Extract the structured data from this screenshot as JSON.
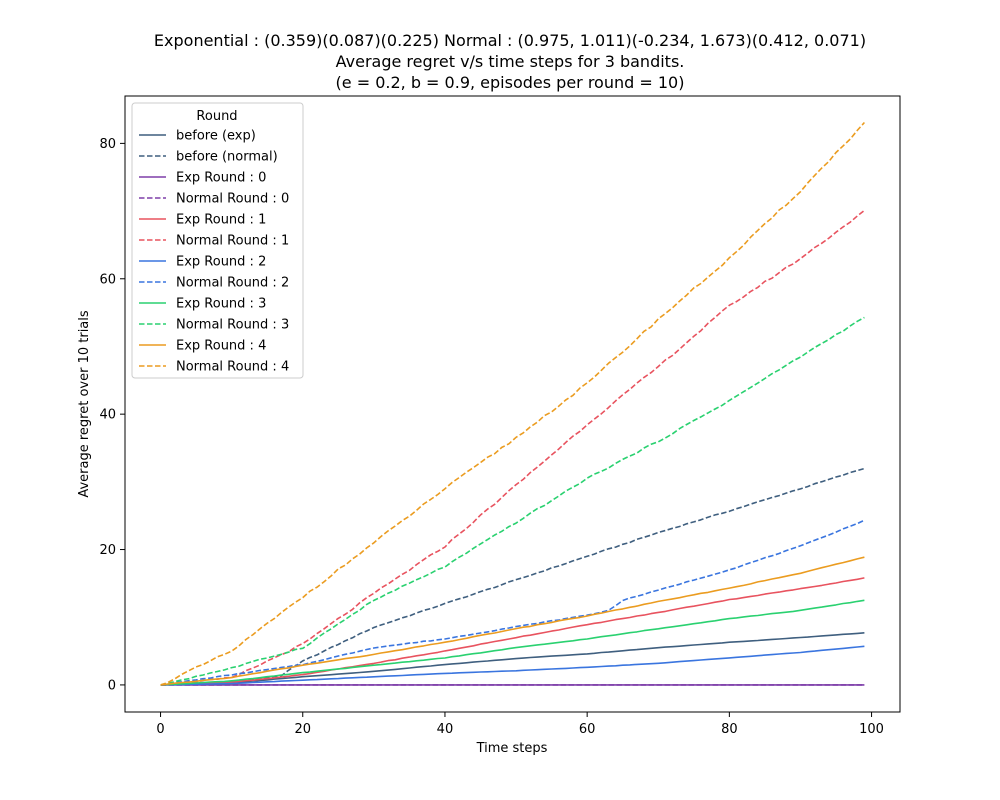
{
  "chart_data": {
    "type": "line",
    "title_lines": [
      "Exponential : (0.359)(0.087)(0.225)   Normal : (0.975, 1.011)(-0.234, 1.673)(0.412, 0.071)",
      "Average regret v/s time steps for 3 bandits.",
      "(e = 0.2, b = 0.9, episodes per round = 10)"
    ],
    "xlabel": "Time steps",
    "ylabel": "Average regret over 10 trials",
    "xlim": [
      -5,
      104
    ],
    "ylim": [
      -4,
      87
    ],
    "xticks": [
      0,
      20,
      40,
      60,
      80,
      100
    ],
    "yticks": [
      0,
      20,
      40,
      60,
      80
    ],
    "grid": false,
    "legend": {
      "title": "Round",
      "placement": "upper-left"
    },
    "x_range": [
      0,
      99
    ],
    "series": [
      {
        "name": "before (exp)",
        "style": "solid",
        "color": "#3f5f7f",
        "points": [
          [
            0,
            0
          ],
          [
            10,
            0.3
          ],
          [
            20,
            1.2
          ],
          [
            30,
            2.0
          ],
          [
            40,
            3.0
          ],
          [
            50,
            3.9
          ],
          [
            60,
            4.6
          ],
          [
            70,
            5.5
          ],
          [
            80,
            6.3
          ],
          [
            90,
            7.0
          ],
          [
            99,
            7.7
          ]
        ]
      },
      {
        "name": "before (normal)",
        "style": "dashed",
        "color": "#3f5f7f",
        "points": [
          [
            0,
            0
          ],
          [
            10,
            0.4
          ],
          [
            17,
            1.4
          ],
          [
            20,
            3.5
          ],
          [
            25,
            6.0
          ],
          [
            30,
            8.5
          ],
          [
            40,
            12.0
          ],
          [
            50,
            15.5
          ],
          [
            60,
            19.0
          ],
          [
            70,
            22.5
          ],
          [
            80,
            25.7
          ],
          [
            90,
            29.0
          ],
          [
            99,
            32.0
          ]
        ]
      },
      {
        "name": "Exp Round : 0",
        "style": "solid",
        "color": "#7e3fa9",
        "points": [
          [
            0,
            0
          ],
          [
            99,
            0
          ]
        ]
      },
      {
        "name": "Normal Round : 0",
        "style": "dashed",
        "color": "#7e3fa9",
        "points": [
          [
            0,
            0
          ],
          [
            99,
            0
          ]
        ]
      },
      {
        "name": "Exp Round : 1",
        "style": "solid",
        "color": "#e8535f",
        "points": [
          [
            0,
            0
          ],
          [
            10,
            0.4
          ],
          [
            20,
            1.5
          ],
          [
            30,
            3.2
          ],
          [
            40,
            5.0
          ],
          [
            50,
            7.0
          ],
          [
            60,
            8.9
          ],
          [
            70,
            10.7
          ],
          [
            80,
            12.6
          ],
          [
            90,
            14.2
          ],
          [
            99,
            15.8
          ]
        ]
      },
      {
        "name": "Normal Round : 1",
        "style": "dashed",
        "color": "#e8535f",
        "points": [
          [
            0,
            0
          ],
          [
            10,
            1.0
          ],
          [
            20,
            6.0
          ],
          [
            30,
            13.5
          ],
          [
            40,
            20.5
          ],
          [
            50,
            29.5
          ],
          [
            60,
            38.5
          ],
          [
            70,
            47.0
          ],
          [
            80,
            56.0
          ],
          [
            90,
            63.0
          ],
          [
            99,
            70.0
          ]
        ]
      },
      {
        "name": "Exp Round : 2",
        "style": "solid",
        "color": "#3a75df",
        "points": [
          [
            0,
            0
          ],
          [
            10,
            0.2
          ],
          [
            20,
            0.7
          ],
          [
            30,
            1.2
          ],
          [
            40,
            1.7
          ],
          [
            50,
            2.1
          ],
          [
            60,
            2.6
          ],
          [
            70,
            3.2
          ],
          [
            80,
            4.0
          ],
          [
            90,
            4.8
          ],
          [
            99,
            5.7
          ]
        ]
      },
      {
        "name": "Normal Round : 2",
        "style": "dashed",
        "color": "#3a75df",
        "points": [
          [
            0,
            0
          ],
          [
            10,
            1.5
          ],
          [
            20,
            3.0
          ],
          [
            30,
            5.5
          ],
          [
            40,
            6.8
          ],
          [
            50,
            8.6
          ],
          [
            60,
            10.3
          ],
          [
            63,
            11.0
          ],
          [
            65,
            12.5
          ],
          [
            70,
            14.0
          ],
          [
            80,
            17.0
          ],
          [
            90,
            20.5
          ],
          [
            99,
            24.3
          ]
        ]
      },
      {
        "name": "Exp Round : 3",
        "style": "solid",
        "color": "#2ad170",
        "points": [
          [
            0,
            0
          ],
          [
            10,
            0.6
          ],
          [
            20,
            1.8
          ],
          [
            30,
            2.9
          ],
          [
            40,
            4.0
          ],
          [
            50,
            5.5
          ],
          [
            60,
            6.8
          ],
          [
            70,
            8.3
          ],
          [
            80,
            9.8
          ],
          [
            90,
            11.0
          ],
          [
            99,
            12.5
          ]
        ]
      },
      {
        "name": "Normal Round : 3",
        "style": "dashed",
        "color": "#2ad170",
        "points": [
          [
            0,
            0
          ],
          [
            10,
            2.5
          ],
          [
            20,
            5.5
          ],
          [
            30,
            12.5
          ],
          [
            40,
            17.5
          ],
          [
            50,
            24.0
          ],
          [
            60,
            30.5
          ],
          [
            70,
            36.0
          ],
          [
            80,
            42.0
          ],
          [
            90,
            48.5
          ],
          [
            99,
            54.3
          ]
        ]
      },
      {
        "name": "Exp Round : 4",
        "style": "solid",
        "color": "#eb9c20",
        "points": [
          [
            0,
            0
          ],
          [
            10,
            1.1
          ],
          [
            20,
            2.9
          ],
          [
            30,
            4.5
          ],
          [
            40,
            6.3
          ],
          [
            50,
            8.3
          ],
          [
            60,
            10.2
          ],
          [
            70,
            12.3
          ],
          [
            80,
            14.3
          ],
          [
            90,
            16.5
          ],
          [
            99,
            18.9
          ]
        ]
      },
      {
        "name": "Normal Round : 4",
        "style": "dashed",
        "color": "#eb9c20",
        "points": [
          [
            0,
            0
          ],
          [
            10,
            5.0
          ],
          [
            20,
            13.0
          ],
          [
            30,
            21.0
          ],
          [
            40,
            29.0
          ],
          [
            50,
            36.5
          ],
          [
            60,
            44.5
          ],
          [
            70,
            54.0
          ],
          [
            80,
            63.0
          ],
          [
            90,
            73.0
          ],
          [
            99,
            83.0
          ]
        ]
      }
    ]
  }
}
